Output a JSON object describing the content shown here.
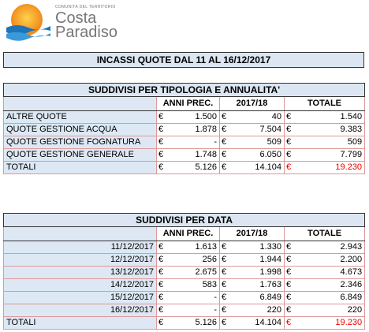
{
  "logo": {
    "tagline": "COMUNITÀ DEL TERRITORIO",
    "name_line1": "Costa",
    "name_line2": "Paradiso"
  },
  "title": "INCASSI QUOTE DAL 11 AL 16/12/2017",
  "currency": "€",
  "tables": [
    {
      "title": "SUDDIVISI PER TIPOLOGIA E ANNUALITA'",
      "columns": [
        "ANNI PREC.",
        "2017/18",
        "TOTALE"
      ],
      "rows": [
        [
          "ALTRE QUOTE",
          "1.500",
          "40",
          "1.540"
        ],
        [
          "QUOTE GESTIONE ACQUA",
          "1.878",
          "7.504",
          "9.383"
        ],
        [
          "QUOTE GESTIONE FOGNATURA",
          "-",
          "509",
          "509"
        ],
        [
          "QUOTE GESTIONE GENERALE",
          "1.748",
          "6.050",
          "7.799"
        ]
      ],
      "total": [
        "TOTALI",
        "5.126",
        "14.104",
        "19.230"
      ]
    },
    {
      "title": "SUDDIVISI PER DATA",
      "columns": [
        "ANNI PREC.",
        "2017/18",
        "TOTALE"
      ],
      "rows": [
        [
          "11/12/2017",
          "1.613",
          "1.330",
          "2.943"
        ],
        [
          "12/12/2017",
          "256",
          "1.944",
          "2.200"
        ],
        [
          "13/12/2017",
          "2.675",
          "1.998",
          "4.673"
        ],
        [
          "14/12/2017",
          "583",
          "1.763",
          "2.346"
        ],
        [
          "15/12/2017",
          "-",
          "6.849",
          "6.849"
        ],
        [
          "16/12/2017",
          "-",
          "220",
          "220"
        ]
      ],
      "total": [
        "TOTALI",
        "5.126",
        "14.104",
        "19.230"
      ]
    }
  ]
}
